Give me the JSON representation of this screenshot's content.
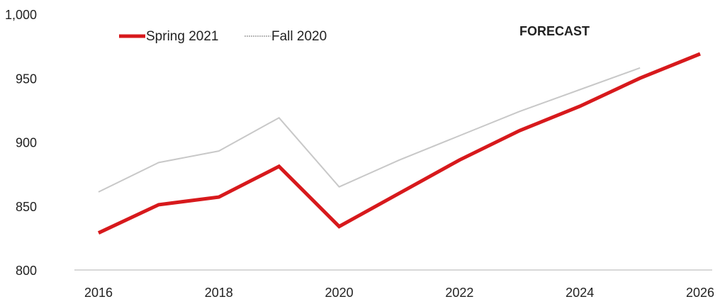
{
  "chart_data": {
    "type": "line",
    "title": "",
    "xlabel": "",
    "ylabel": "",
    "x": [
      2016,
      2017,
      2018,
      2019,
      2020,
      2021,
      2022,
      2023,
      2024,
      2025,
      2026
    ],
    "xticks": [
      "2016",
      "2018",
      "2020",
      "2022",
      "2024",
      "2026"
    ],
    "yticks": [
      "800",
      "850",
      "900",
      "950",
      "1,000"
    ],
    "xlim": [
      2015.6,
      2026.2
    ],
    "ylim": [
      800,
      1000
    ],
    "grid": false,
    "legend_position": "top-left",
    "annotation": "FORECAST",
    "series": [
      {
        "name": "Spring 2021",
        "color": "#d7191c",
        "values": [
          829,
          851,
          857,
          881,
          834,
          860,
          886,
          909,
          928,
          950,
          969
        ]
      },
      {
        "name": "Fall 2020",
        "color": "#c8c8c8",
        "values": [
          861,
          884,
          893,
          919,
          865,
          886,
          905,
          924,
          941,
          958,
          null
        ]
      }
    ]
  }
}
